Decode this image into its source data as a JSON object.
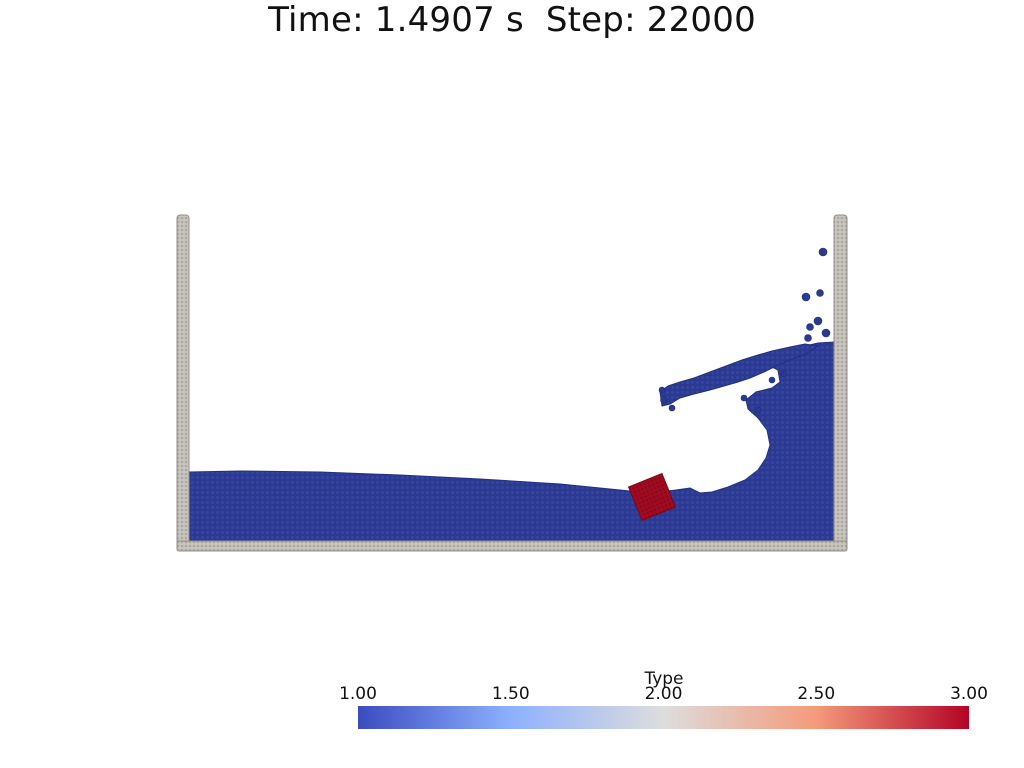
{
  "title": "Time: 1.4907 s  Step: 22000",
  "legend": {
    "title": "Type",
    "ticks": [
      "1.00",
      "1.50",
      "2.00",
      "2.50",
      "3.00"
    ],
    "colormap": [
      "#3b4cc0",
      "#8db0fe",
      "#dddddd",
      "#f49a7b",
      "#b40426"
    ]
  },
  "colors": {
    "fluid": "#2b3990",
    "fluid_dark": "#22307e",
    "wall": "#c8c6bf",
    "wall_edge": "#8f8d86",
    "box": "#a00b22",
    "box_dark": "#7d0618"
  }
}
